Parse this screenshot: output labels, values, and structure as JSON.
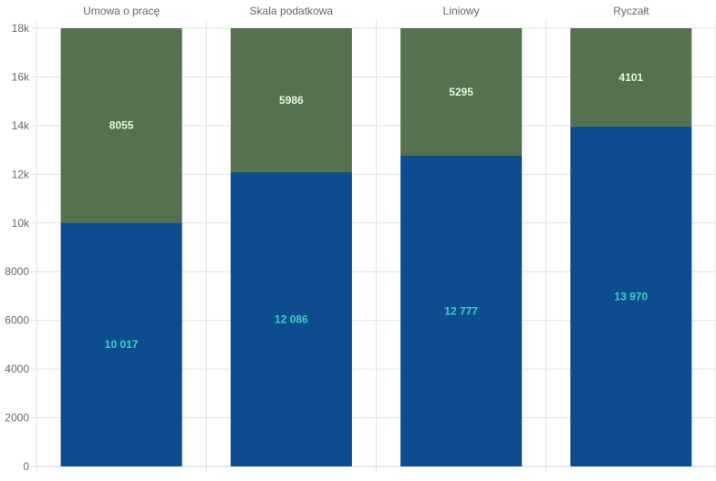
{
  "chart_data": {
    "type": "bar",
    "stacked": true,
    "categories": [
      "Umowa o pracę",
      "Skala podatkowa",
      "Liniowy",
      "Ryczałt"
    ],
    "category_axis_position": "top",
    "series": [
      {
        "values": [
          10017,
          12086,
          12777,
          13970
        ],
        "labels": [
          "10 017",
          "12 086",
          "12 777",
          "13 970"
        ],
        "color": "#0d4c8f",
        "label_color": "#3fd0c4"
      },
      {
        "values": [
          8055,
          5986,
          5295,
          4101
        ],
        "labels": [
          "8055",
          "5986",
          "5295",
          "4101"
        ],
        "color": "#557150",
        "label_color": "#e8f5e0"
      }
    ],
    "ylim": [
      0,
      18000
    ],
    "yticks": [
      0,
      2000,
      4000,
      6000,
      8000,
      10000,
      12000,
      14000,
      16000,
      18000
    ],
    "ytick_labels": [
      "0",
      "2000",
      "4000",
      "6000",
      "8000",
      "10k",
      "12k",
      "14k",
      "16k",
      "18k"
    ],
    "grid": true,
    "legend": "none"
  }
}
